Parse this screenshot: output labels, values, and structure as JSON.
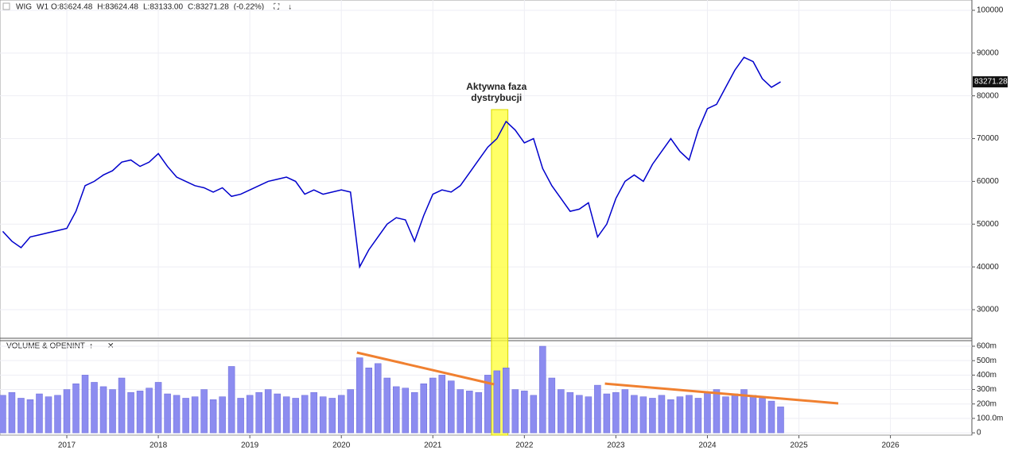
{
  "chart_data": [
    {
      "type": "line",
      "title": "WIG",
      "timeframe": "W1",
      "header_values": [
        "O:83624.48",
        "H:83624.48",
        "L:83133.00",
        "C:83271.28",
        "(-0.22%)"
      ],
      "series": [
        {
          "color": "#0000cc",
          "x": [
            2016.3,
            2016.4,
            2016.5,
            2016.6,
            2016.7,
            2016.8,
            2016.9,
            2017.0,
            2017.1,
            2017.2,
            2017.3,
            2017.4,
            2017.5,
            2017.6,
            2017.7,
            2017.8,
            2017.9,
            2018.0,
            2018.1,
            2018.2,
            2018.3,
            2018.4,
            2018.5,
            2018.6,
            2018.7,
            2018.8,
            2018.9,
            2019.0,
            2019.1,
            2019.2,
            2019.3,
            2019.4,
            2019.5,
            2019.6,
            2019.7,
            2019.8,
            2019.9,
            2020.0,
            2020.1,
            2020.2,
            2020.3,
            2020.4,
            2020.5,
            2020.6,
            2020.7,
            2020.8,
            2020.9,
            2021.0,
            2021.1,
            2021.2,
            2021.3,
            2021.4,
            2021.5,
            2021.6,
            2021.7,
            2021.8,
            2021.9,
            2022.0,
            2022.1,
            2022.2,
            2022.3,
            2022.4,
            2022.5,
            2022.6,
            2022.7,
            2022.8,
            2022.9,
            2023.0,
            2023.1,
            2023.2,
            2023.3,
            2023.4,
            2023.5,
            2023.6,
            2023.7,
            2023.8,
            2023.9,
            2024.0,
            2024.1,
            2024.2,
            2024.3,
            2024.4,
            2024.5,
            2024.6,
            2024.7,
            2024.8
          ],
          "values": [
            48300,
            46000,
            44500,
            47000,
            47500,
            48000,
            48500,
            49000,
            53000,
            59000,
            60000,
            61500,
            62500,
            64500,
            65000,
            63500,
            64500,
            66500,
            63500,
            61000,
            60000,
            59000,
            58500,
            57500,
            58500,
            56500,
            57000,
            58000,
            59000,
            60000,
            60500,
            61000,
            60000,
            57000,
            58000,
            57000,
            57500,
            58000,
            57500,
            40000,
            44000,
            47000,
            50000,
            51500,
            51000,
            46000,
            52000,
            57000,
            58000,
            57500,
            59000,
            62000,
            65000,
            68000,
            70000,
            74000,
            72000,
            69000,
            70000,
            63000,
            59000,
            56000,
            53000,
            53500,
            55000,
            47000,
            50000,
            56000,
            60000,
            61500,
            60000,
            64000,
            67000,
            70000,
            67000,
            65000,
            72000,
            77000,
            78000,
            82000,
            86000,
            89000,
            88000,
            84000,
            82000,
            83271.28
          ]
        }
      ],
      "ylim": [
        23500,
        102407
      ],
      "yticks": [
        30000,
        40000,
        50000,
        60000,
        70000,
        80000,
        90000,
        100000
      ],
      "annotation": {
        "lines": [
          "Aktywna faza",
          "dystrybucji"
        ],
        "x": [
          2021.64,
          2021.82
        ],
        "color": "#ffff33"
      }
    },
    {
      "type": "bar",
      "title": "VOLUME & OPENINT",
      "series": [
        {
          "color": "#8c8cf0",
          "x": [
            2016.3,
            2016.4,
            2016.5,
            2016.6,
            2016.7,
            2016.8,
            2016.9,
            2017.0,
            2017.1,
            2017.2,
            2017.3,
            2017.4,
            2017.5,
            2017.6,
            2017.7,
            2017.8,
            2017.9,
            2018.0,
            2018.1,
            2018.2,
            2018.3,
            2018.4,
            2018.5,
            2018.6,
            2018.7,
            2018.8,
            2018.9,
            2019.0,
            2019.1,
            2019.2,
            2019.3,
            2019.4,
            2019.5,
            2019.6,
            2019.7,
            2019.8,
            2019.9,
            2020.0,
            2020.1,
            2020.2,
            2020.3,
            2020.4,
            2020.5,
            2020.6,
            2020.7,
            2020.8,
            2020.9,
            2021.0,
            2021.1,
            2021.2,
            2021.3,
            2021.4,
            2021.5,
            2021.6,
            2021.7,
            2021.8,
            2021.9,
            2022.0,
            2022.1,
            2022.2,
            2022.3,
            2022.4,
            2022.5,
            2022.6,
            2022.7,
            2022.8,
            2022.9,
            2023.0,
            2023.1,
            2023.2,
            2023.3,
            2023.4,
            2023.5,
            2023.6,
            2023.7,
            2023.8,
            2023.9,
            2024.0,
            2024.1,
            2024.2,
            2024.3,
            2024.4,
            2024.5,
            2024.6,
            2024.7,
            2024.8
          ],
          "values": [
            260,
            280,
            240,
            230,
            270,
            250,
            260,
            300,
            340,
            400,
            350,
            320,
            300,
            380,
            280,
            290,
            310,
            350,
            270,
            260,
            240,
            250,
            300,
            230,
            250,
            460,
            240,
            260,
            280,
            300,
            270,
            250,
            240,
            260,
            280,
            250,
            240,
            260,
            300,
            520,
            450,
            480,
            380,
            320,
            310,
            280,
            340,
            380,
            400,
            360,
            300,
            290,
            280,
            400,
            430,
            450,
            300,
            290,
            260,
            600,
            380,
            300,
            280,
            260,
            250,
            330,
            270,
            280,
            300,
            260,
            250,
            240,
            260,
            230,
            250,
            260,
            240,
            280,
            300,
            250,
            270,
            300,
            260,
            240,
            220,
            180
          ]
        }
      ],
      "ylim": [
        -16,
        633
      ],
      "yticks": [
        0,
        {
          "value": 100,
          "label": "100.0m"
        },
        {
          "value": 200,
          "label": "200m"
        },
        {
          "value": 300,
          "label": "300m"
        },
        {
          "value": 400,
          "label": "400m"
        },
        {
          "value": 500,
          "label": "500m"
        },
        {
          "value": 600,
          "label": "600m"
        }
      ],
      "xlim": [
        2016.27,
        2026.89
      ],
      "xticks": [
        2017,
        2018,
        2019,
        2020,
        2021,
        2022,
        2023,
        2024,
        2025,
        2026
      ],
      "trend_lines": [
        {
          "color": "#f08030",
          "x": [
            2020.17,
            2021.67
          ],
          "y": [
            556,
            336
          ]
        },
        {
          "color": "#f08030",
          "x": [
            2022.88,
            2025.43
          ],
          "y": [
            341,
            204
          ]
        }
      ]
    }
  ]
}
